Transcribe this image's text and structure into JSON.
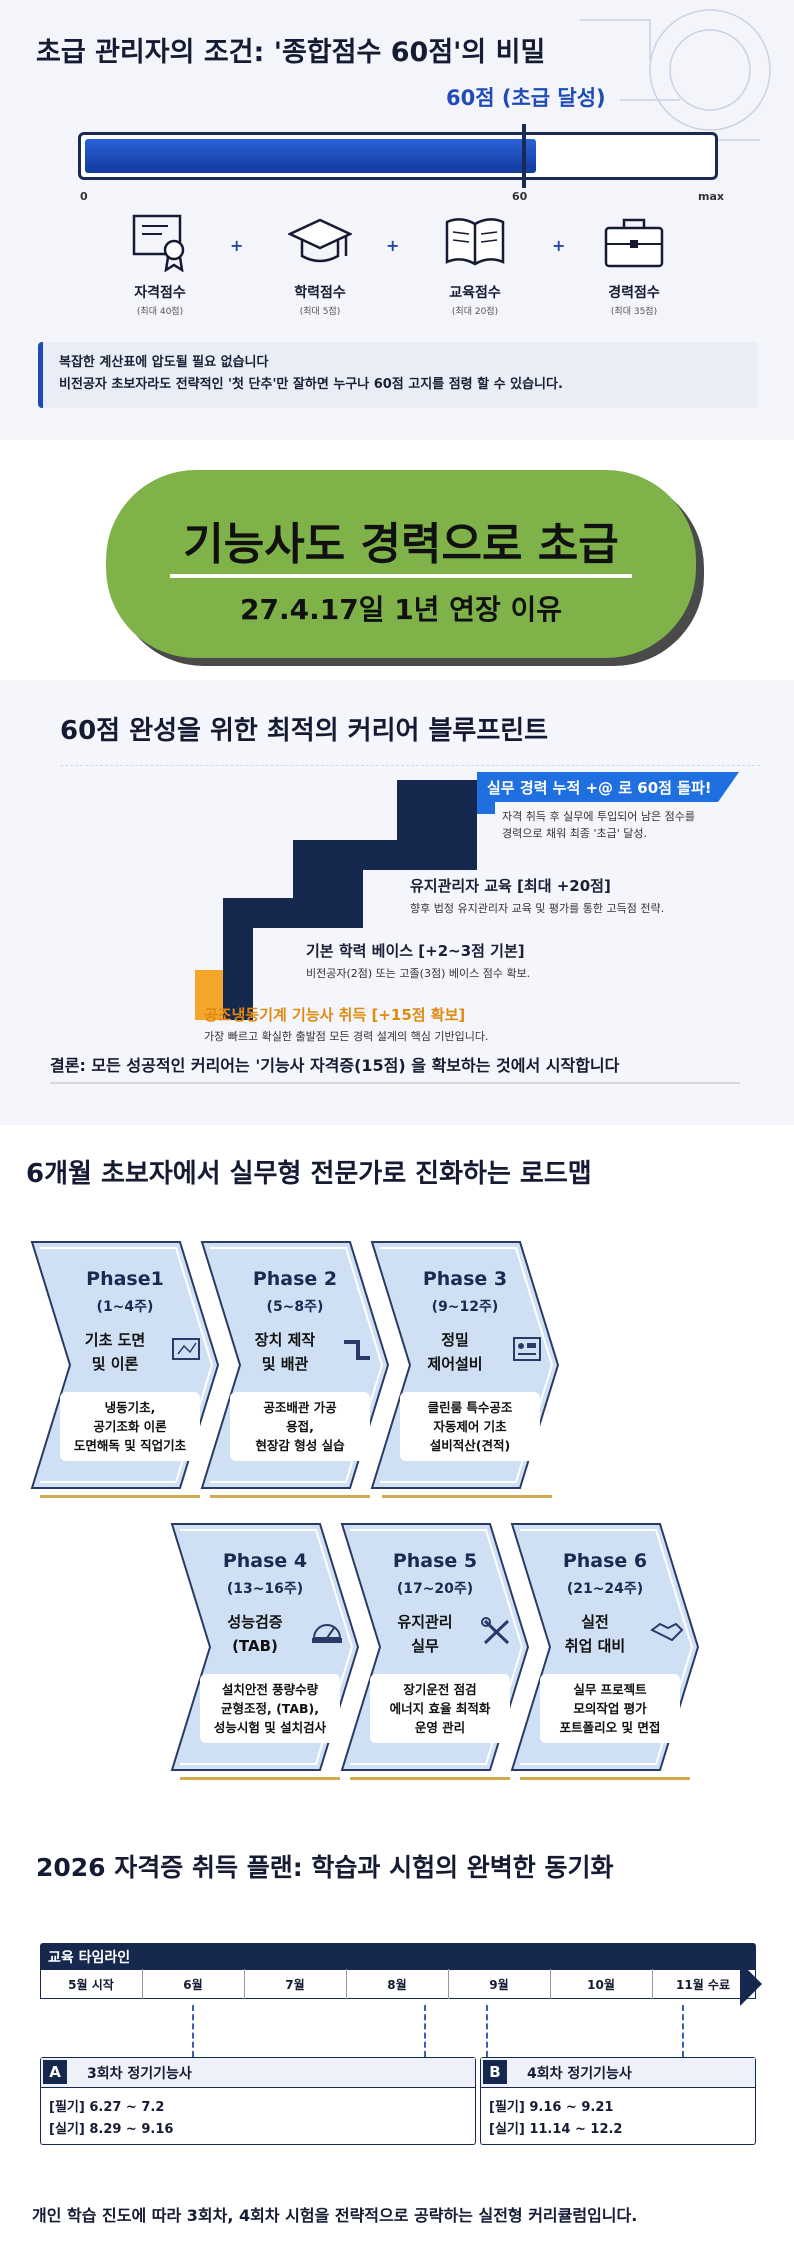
{
  "section1": {
    "title": "초급 관리자의 조건: '종합점수 60점'의 비밀",
    "gauge": {
      "label": "60점 (초급 달성)",
      "tick_start": "0",
      "tick_mid": "60",
      "tick_end": "max",
      "progress_fraction": 0.72
    },
    "items": [
      {
        "name": "자격점수",
        "sub": "(최대 40점)",
        "icon": "certificate-icon"
      },
      {
        "name": "학력점수",
        "sub": "(최대 5점)",
        "icon": "graduation-cap-icon"
      },
      {
        "name": "교육점수",
        "sub": "(최대 20점)",
        "icon": "open-book-icon"
      },
      {
        "name": "경력점수",
        "sub": "(최대 35점)",
        "icon": "briefcase-icon"
      }
    ],
    "plus": "+",
    "note_line1": "복잡한 계산표에 압도될 필요 없습니다",
    "note_line2": "비전공자 초보자라도 전략적인 '첫 단추'만 잘하면 누구나 60점 고지를 점령 할 수 있습니다."
  },
  "section2": {
    "title": "기능사도 경력으로 초급",
    "subtitle": "27.4.17일 1년 연장 이유",
    "color": "#7fb34a"
  },
  "section3": {
    "title": "60점 완성을 위한 최적의 커리어 블루프린트",
    "steps": [
      {
        "title": "공조냉동기계 기능사 취득 [+15점 확보]",
        "desc": "가장 빠르고 확실한 출발점 모든 경력 설계의 핵심 기반입니다."
      },
      {
        "title": "기본 학력 베이스 [+2~3점 기본]",
        "desc": "비전공자(2점) 또는 고졸(3점) 베이스 점수 확보."
      },
      {
        "title": "유지관리자 교육 [최대 +20점]",
        "desc": "향후 법정 유지관리자 교육 및 평가를 통한 고득점 전략."
      },
      {
        "title": "실무 경력 누적 +@ 로 60점 돌파!",
        "desc1": "자격 취득 후 실무에 투입되어 남은 점수를",
        "desc2": "경력으로 채워 최종 '초급' 달성."
      }
    ],
    "conclusion": "결론: 모든 성공적인 커리어는 '기능사 자격증(15점) 을 확보하는 것에서 시작합니다"
  },
  "section4": {
    "title": "6개월 초보자에서 실무형 전문가로 진화하는 로드맵",
    "phases": [
      {
        "name": "Phase1",
        "weeks": "(1~4주)",
        "topic1": "기초 도면",
        "topic2": "및 이론",
        "d1": "냉동기초,",
        "d2": "공기조화 이론",
        "d3": "도면해독 및 직업기초",
        "icon": "blueprint-icon"
      },
      {
        "name": "Phase 2",
        "weeks": "(5~8주)",
        "topic1": "장치 제작",
        "topic2": "및 배관",
        "d1": "공조배관 가공",
        "d2": "용접,",
        "d3": "현장감 형성 실습",
        "icon": "pipe-icon"
      },
      {
        "name": "Phase 3",
        "weeks": "(9~12주)",
        "topic1": "정밀",
        "topic2": "제어설비",
        "d1": "클린룸 특수공조",
        "d2": "자동제어 기초",
        "d3": "설비적산(견적)",
        "icon": "control-panel-icon"
      },
      {
        "name": "Phase 4",
        "weeks": "(13~16주)",
        "topic1": "성능검증",
        "topic2": "(TAB)",
        "d1": "설치안전 풍량수량",
        "d2": "균형조정, (TAB),",
        "d3": "성능시험 및 설치검사",
        "icon": "gauge-icon"
      },
      {
        "name": "Phase 5",
        "weeks": "(17~20주)",
        "topic1": "유지관리",
        "topic2": "실무",
        "d1": "장기운전 점검",
        "d2": "에너지 효율 최적화",
        "d3": "운영 관리",
        "icon": "wrench-screwdriver-icon"
      },
      {
        "name": "Phase 6",
        "weeks": "(21~24주)",
        "topic1": "실전",
        "topic2": "취업 대비",
        "d1": "실무 프로젝트",
        "d2": "모의작업 평가",
        "d3": "포트폴리오 및 면접",
        "icon": "handshake-icon"
      }
    ]
  },
  "section5": {
    "title": "2026 자격증 취득 플랜: 학습과 시험의 완벽한 동기화",
    "timeline_label": "교육 타임라인",
    "months": [
      "5월 시작",
      "6월",
      "7월",
      "8월",
      "9월",
      "10월",
      "11월 수료"
    ],
    "exams": [
      {
        "badge": "A",
        "name": "3회차 정기기능사",
        "written": "[필기]  6.27 ~ 7.2",
        "practical": "[실기]  8.29 ~ 9.16"
      },
      {
        "badge": "B",
        "name": "4회차 정기기능사",
        "written": "[필기]  9.16 ~ 9.21",
        "practical": "[실기]  11.14 ~ 12.2"
      }
    ],
    "footer": "개인 학습 진도에 따라 3회차, 4회차 시험을 전략적으로 공략하는 실전형 커리큘럼입니다."
  }
}
